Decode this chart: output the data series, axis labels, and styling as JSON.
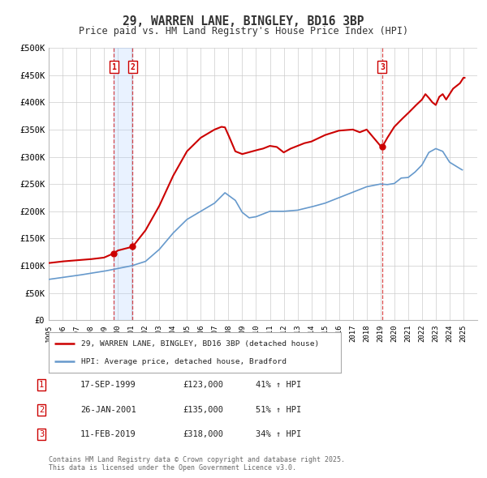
{
  "title": "29, WARREN LANE, BINGLEY, BD16 3BP",
  "subtitle": "Price paid vs. HM Land Registry's House Price Index (HPI)",
  "background_color": "#ffffff",
  "plot_bg_color": "#ffffff",
  "grid_color": "#cccccc",
  "xlim": [
    1995,
    2026
  ],
  "ylim": [
    0,
    500000
  ],
  "yticks": [
    0,
    50000,
    100000,
    150000,
    200000,
    250000,
    300000,
    350000,
    400000,
    450000,
    500000
  ],
  "ytick_labels": [
    "£0",
    "£50K",
    "£100K",
    "£150K",
    "£200K",
    "£250K",
    "£300K",
    "£350K",
    "£400K",
    "£450K",
    "£500K"
  ],
  "xticks": [
    1995,
    1996,
    1997,
    1998,
    1999,
    2000,
    2001,
    2002,
    2003,
    2004,
    2005,
    2006,
    2007,
    2008,
    2009,
    2010,
    2011,
    2012,
    2013,
    2014,
    2015,
    2016,
    2017,
    2018,
    2019,
    2020,
    2021,
    2022,
    2023,
    2024,
    2025
  ],
  "line1_color": "#cc0000",
  "line2_color": "#6699cc",
  "legend_label1": "29, WARREN LANE, BINGLEY, BD16 3BP (detached house)",
  "legend_label2": "HPI: Average price, detached house, Bradford",
  "sale1_date": "17-SEP-1999",
  "sale1_price": 123000,
  "sale1_pct": "41% ↑ HPI",
  "sale2_date": "26-JAN-2001",
  "sale2_price": 135000,
  "sale2_pct": "51% ↑ HPI",
  "sale3_date": "11-FEB-2019",
  "sale3_price": 318000,
  "sale3_pct": "34% ↑ HPI",
  "sale1_x": 1999.72,
  "sale2_x": 2001.07,
  "sale3_x": 2019.12,
  "footer": "Contains HM Land Registry data © Crown copyright and database right 2025.\nThis data is licensed under the Open Government Licence v3.0."
}
